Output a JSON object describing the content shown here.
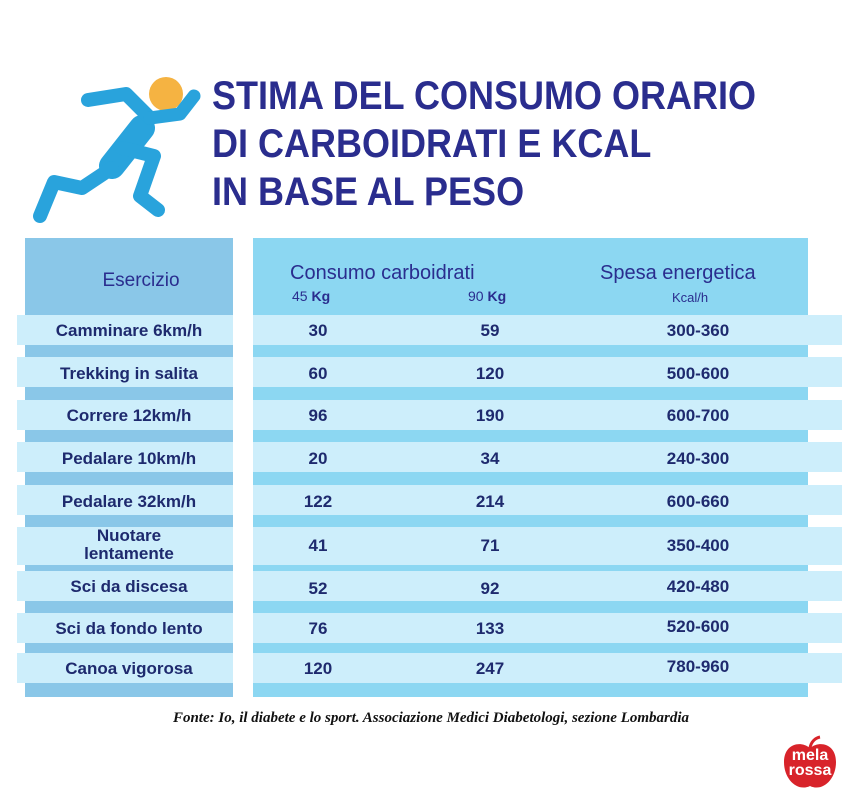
{
  "title": {
    "line1": "STIMA DEL CONSUMO ORARIO",
    "line2": "DI CARBOIDRATI E KCAL",
    "line3": "IN BASE AL PESO"
  },
  "colors": {
    "title": "#2a2d8e",
    "left_column": "#8ac7e8",
    "right_column": "#8cd7f2",
    "row_band": "#cdeefb",
    "runner_body": "#29a3dc",
    "runner_head": "#f5b342",
    "logo": "#d8232a"
  },
  "icons": {
    "runner": "running-person-icon",
    "logo": "melarossa-logo"
  },
  "table": {
    "header_exercise": "Esercizio",
    "header_consumption": "Consumo carboidrati",
    "header_45_num": "45",
    "header_45_unit": "Kg",
    "header_90_num": "90",
    "header_90_unit": "Kg",
    "header_energy": "Spesa energetica",
    "header_energy_unit": "Kcal/h",
    "rows": [
      {
        "exercise": "Camminare 6km/h",
        "kg45": "30",
        "kg90": "59",
        "kcal": "300-360"
      },
      {
        "exercise": "Trekking in salita",
        "kg45": "60",
        "kg90": "120",
        "kcal": "500-600"
      },
      {
        "exercise": "Correre 12km/h",
        "kg45": "96",
        "kg90": "190",
        "kcal": "600-700"
      },
      {
        "exercise": "Pedalare 10km/h",
        "kg45": "20",
        "kg90": "34",
        "kcal": "240-300"
      },
      {
        "exercise": "Pedalare 32km/h",
        "kg45": "122",
        "kg90": "214",
        "kcal": "600-660"
      },
      {
        "exercise_line1": "Nuotare",
        "exercise_line2": "lentamente",
        "kg45": "41",
        "kg90": "71",
        "kcal": "350-400"
      },
      {
        "exercise": "Sci da discesa",
        "kg45": "52",
        "kg90": "92",
        "kcal": "420-480"
      },
      {
        "exercise": "Sci da fondo lento",
        "kg45": "76",
        "kg90": "133",
        "kcal": "520-600"
      },
      {
        "exercise": "Canoa vigorosa",
        "kg45": "120",
        "kg90": "247",
        "kcal": "780-960"
      }
    ]
  },
  "source": "Fonte: Io, il diabete e lo sport. Associazione Medici Diabetologi, sezione Lombardia",
  "logo": {
    "line1": "mela",
    "line2": "rossa"
  }
}
